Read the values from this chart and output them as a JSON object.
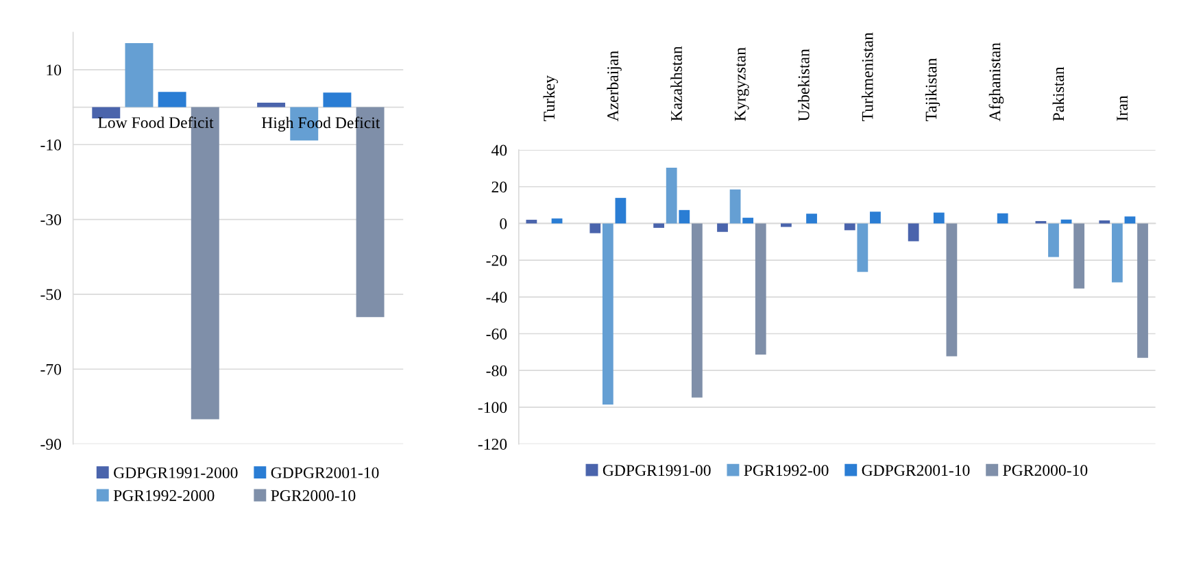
{
  "chart_data": [
    {
      "type": "bar",
      "categories": [
        "Low Food Deficit",
        "High Food Deficit"
      ],
      "series": [
        {
          "name": "GDPGR1991-2000",
          "color": "#4a64ac",
          "values": [
            -3.0,
            1.2
          ]
        },
        {
          "name": "PGR1992-2000",
          "color": "#659fd3",
          "values": [
            17.1,
            -8.9
          ]
        },
        {
          "name": "GDPGR2001-10",
          "color": "#2a7dd4",
          "values": [
            4.1,
            3.9
          ]
        },
        {
          "name": "PGR2000-10",
          "color": "#7f8fa9",
          "values": [
            -83.4,
            -56.1
          ]
        }
      ],
      "ylim": [
        -90,
        20
      ],
      "yticks": [
        -90,
        -70,
        -50,
        -30,
        -10,
        10
      ],
      "grid": "y",
      "legend": "bottom"
    },
    {
      "type": "bar",
      "categories": [
        "Turkey",
        "Azerbaijan",
        "Kazakhstan",
        "Kyrgyzstan",
        "Uzbekistan",
        "Turkmenistan",
        "Tajikistan",
        "Afghanistan",
        "Pakistan",
        "Iran"
      ],
      "series": [
        {
          "name": "GDPGR1991-00",
          "color": "#4a64ac",
          "values": [
            2.0,
            -5.3,
            -2.4,
            -4.6,
            -1.9,
            -3.7,
            -9.7,
            null,
            1.3,
            1.6
          ]
        },
        {
          "name": "PGR1992-00",
          "color": "#659fd3",
          "values": [
            null,
            -98.6,
            30.3,
            18.5,
            null,
            -26.4,
            null,
            null,
            -18.3,
            -32.1
          ]
        },
        {
          "name": "GDPGR2001-10",
          "color": "#2a7dd4",
          "values": [
            2.7,
            13.9,
            7.3,
            3.1,
            5.3,
            6.4,
            5.9,
            5.5,
            2.1,
            3.8
          ]
        },
        {
          "name": "PGR2000-10",
          "color": "#7f8fa9",
          "values": [
            null,
            null,
            -94.7,
            -71.4,
            null,
            null,
            -72.3,
            null,
            -35.4,
            -73.1
          ]
        }
      ],
      "ylim": [
        -120,
        40
      ],
      "yticks": [
        -120,
        -100,
        -80,
        -60,
        -40,
        -20,
        0,
        20,
        40
      ],
      "grid": "y",
      "legend": "bottom"
    }
  ]
}
